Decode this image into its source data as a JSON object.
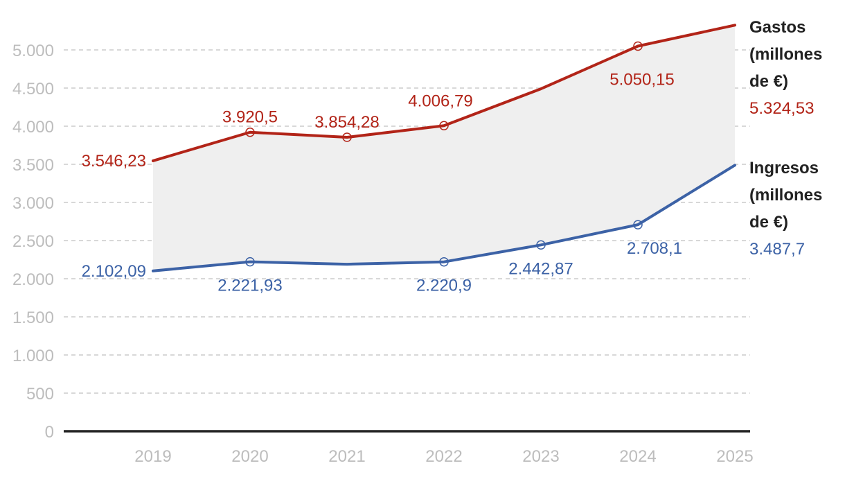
{
  "chart_data": {
    "type": "line",
    "categories": [
      "2019",
      "2020",
      "2021",
      "2022",
      "2023",
      "2024",
      "2025"
    ],
    "ylim": [
      0,
      5000
    ],
    "yticks": [
      0,
      500,
      1000,
      1500,
      2000,
      2500,
      3000,
      3500,
      4000,
      4500,
      5000
    ],
    "ytick_labels": [
      "0",
      "500",
      "1.000",
      "1.500",
      "2.000",
      "2.500",
      "3.000",
      "3.500",
      "4.000",
      "4.500",
      "5.000"
    ],
    "grid": "horizontal-dashed",
    "fill_between_series": true,
    "series": [
      {
        "name": "Gastos (millones de €)",
        "name_lines": [
          "Gastos",
          "(millones",
          "de €)"
        ],
        "color": "#b22418",
        "values": [
          3546.23,
          3920.5,
          3854.28,
          4006.79,
          4490,
          5050.15,
          5324.53
        ],
        "data_labels": [
          "3.546,23",
          "3.920,5",
          "3.854,28",
          "4.006,79",
          "",
          "5.050,15",
          "5.324,53"
        ],
        "markers": [
          false,
          true,
          true,
          true,
          false,
          true,
          false
        ]
      },
      {
        "name": "Ingresos (millones de €)",
        "name_lines": [
          "Ingresos",
          "(millones",
          "de €)"
        ],
        "color": "#3c62a6",
        "values": [
          2102.09,
          2221.93,
          2190,
          2220.9,
          2442.87,
          2708.1,
          3487.7
        ],
        "data_labels": [
          "2.102,09",
          "2.221,93",
          "",
          "2.220,9",
          "2.442,87",
          "2.708,1",
          "3.487,7"
        ],
        "markers": [
          false,
          true,
          false,
          true,
          true,
          true,
          false
        ]
      }
    ]
  }
}
